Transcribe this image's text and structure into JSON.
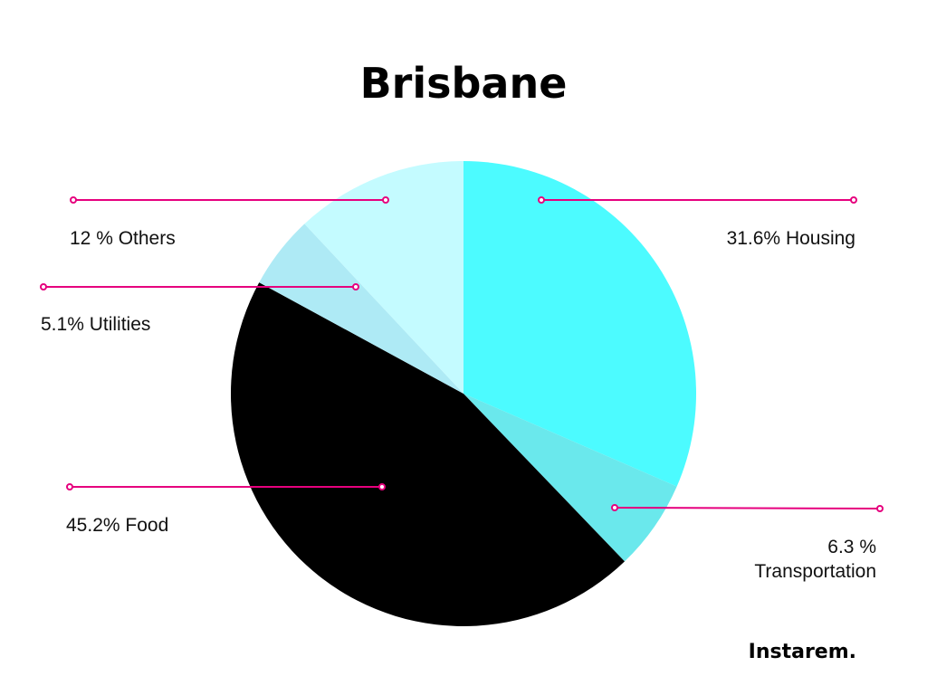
{
  "chart_data": {
    "type": "pie",
    "title": "Brisbane",
    "categories": [
      "Housing",
      "Transportation",
      "Food",
      "Utilities",
      "Others"
    ],
    "values": [
      31.6,
      6.3,
      45.2,
      5.1,
      12
    ],
    "colors": [
      "#4cfbff",
      "#6ae8ec",
      "#000000",
      "#aeeaf5",
      "#c4fbff"
    ],
    "labels": {
      "housing": "31.6% Housing",
      "transportation_value": "6.3 %",
      "transportation_name": "Transportation",
      "food": "45.2% Food",
      "utilities": "5.1% Utilities",
      "others": "12 % Others"
    },
    "leader_color": "#e6007e"
  },
  "brand": {
    "name": "Instarem."
  }
}
